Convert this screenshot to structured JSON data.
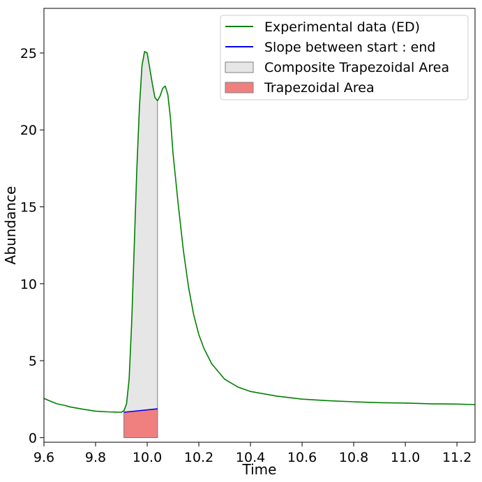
{
  "chart_data": {
    "type": "line",
    "title": "",
    "xlabel": "Time",
    "ylabel": "Abundance",
    "xlim": [
      9.6,
      11.27
    ],
    "ylim": [
      -0.3,
      27.9
    ],
    "xticks": [
      "9.6",
      "9.8",
      "10.0",
      "10.2",
      "10.4",
      "10.6",
      "10.8",
      "11.0",
      "11.2"
    ],
    "yticks": [
      "0",
      "5",
      "10",
      "15",
      "20",
      "25"
    ],
    "grid": false,
    "legend_position": "top-right",
    "series": [
      {
        "name": "Experimental data (ED)",
        "color": "#008000",
        "x": [
          9.6,
          9.62,
          9.65,
          9.68,
          9.7,
          9.75,
          9.8,
          9.85,
          9.88,
          9.9,
          9.91,
          9.92,
          9.93,
          9.94,
          9.95,
          9.96,
          9.97,
          9.98,
          9.99,
          10.0,
          10.01,
          10.02,
          10.03,
          10.04,
          10.05,
          10.06,
          10.07,
          10.08,
          10.09,
          10.1,
          10.12,
          10.14,
          10.16,
          10.18,
          10.2,
          10.22,
          10.25,
          10.3,
          10.35,
          10.4,
          10.5,
          10.6,
          10.7,
          10.8,
          10.9,
          11.0,
          11.1,
          11.2,
          11.27
        ],
        "y": [
          2.55,
          2.4,
          2.2,
          2.1,
          2.0,
          1.85,
          1.72,
          1.67,
          1.66,
          1.65,
          1.75,
          2.2,
          3.8,
          7.5,
          12.5,
          17.5,
          21.5,
          24.2,
          25.1,
          25.0,
          24.0,
          23.0,
          22.1,
          21.9,
          22.2,
          22.7,
          22.85,
          22.3,
          20.8,
          18.5,
          15.2,
          12.2,
          9.8,
          8.0,
          6.7,
          5.8,
          4.8,
          3.8,
          3.3,
          3.0,
          2.7,
          2.5,
          2.4,
          2.33,
          2.27,
          2.25,
          2.2,
          2.18,
          2.15
        ]
      },
      {
        "name": "Slope between start : end",
        "color": "#0000ff",
        "x": [
          9.91,
          10.04
        ],
        "y": [
          1.65,
          1.87
        ]
      }
    ],
    "areas": [
      {
        "name": "Composite Trapezoidal Area",
        "fill": "#e6e6e6",
        "edge": "#7f7f7f",
        "x_range": [
          9.91,
          10.04
        ],
        "follows_series": "Experimental data (ED)"
      },
      {
        "name": "Trapezoidal Area",
        "fill": "#f08080",
        "edge": "#7f7f7f",
        "x_range": [
          9.91,
          10.04
        ],
        "top": [
          1.65,
          1.87
        ]
      }
    ],
    "legend": [
      {
        "label": "Experimental data (ED)",
        "kind": "line",
        "color": "#008000"
      },
      {
        "label": "Slope between start : end",
        "kind": "line",
        "color": "#0000ff"
      },
      {
        "label": "Composite Trapezoidal Area",
        "kind": "patch",
        "color": "#e6e6e6"
      },
      {
        "label": "Trapezoidal Area",
        "kind": "patch",
        "color": "#f08080"
      }
    ]
  }
}
